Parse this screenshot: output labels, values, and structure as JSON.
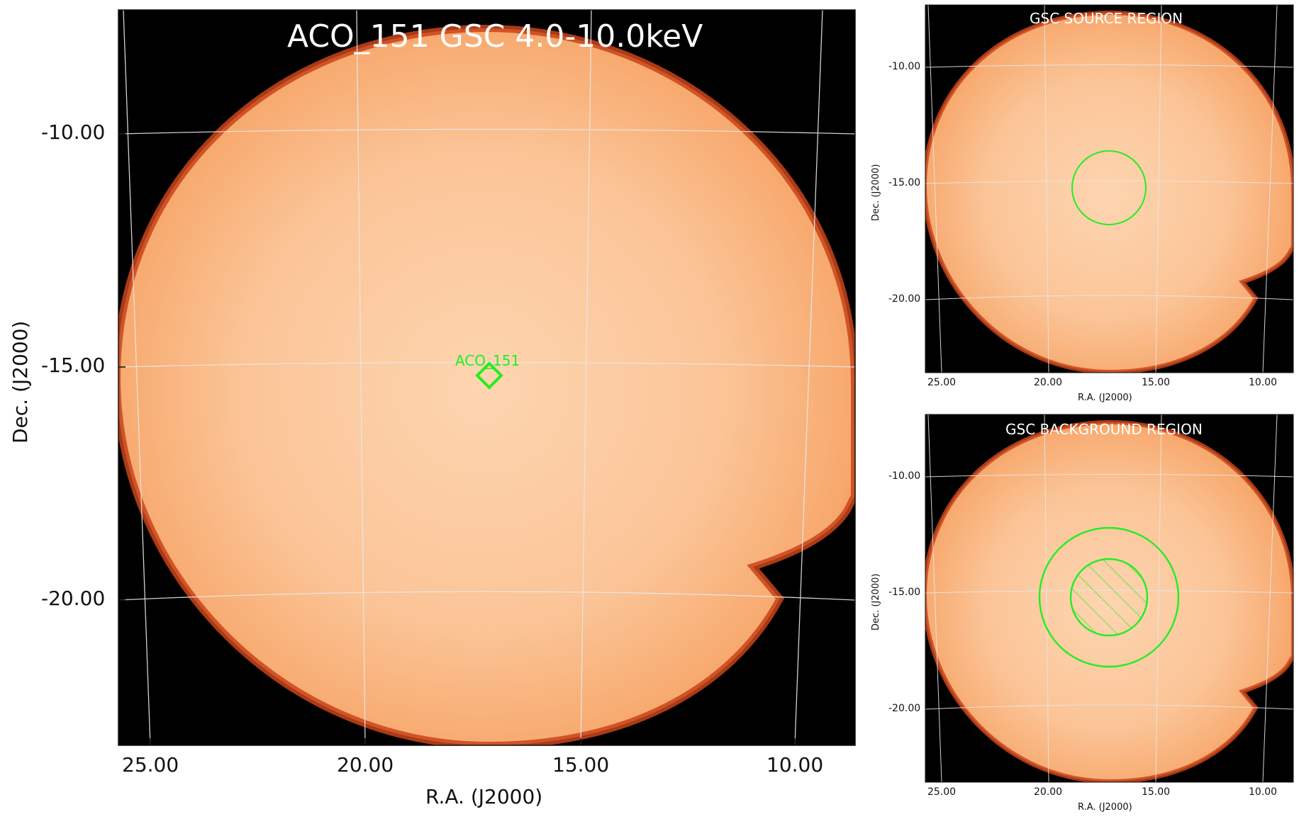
{
  "main": {
    "title": "ACO_151 GSC 4.0-10.0keV",
    "xlabel": "R.A. (J2000)",
    "ylabel": "Dec. (J2000)",
    "xticks": [
      "25.00",
      "20.00",
      "15.00",
      "10.00"
    ],
    "yticks": [
      "-10.00",
      "-15.00",
      "-20.00"
    ],
    "source_label": "ACO_151"
  },
  "source_panel": {
    "title": "GSC SOURCE REGION",
    "xlabel": "R.A. (J2000)",
    "ylabel": "Dec. (J2000)",
    "xticks": [
      "25.00",
      "20.00",
      "15.00",
      "10.00"
    ],
    "yticks": [
      "-10.00",
      "-15.00",
      "-20.00"
    ]
  },
  "background_panel": {
    "title": "GSC BACKGROUND REGION",
    "xlabel": "R.A. (J2000)",
    "ylabel": "Dec. (J2000)",
    "xticks": [
      "25.00",
      "20.00",
      "15.00",
      "10.00"
    ],
    "yticks": [
      "-10.00",
      "-15.00",
      "-20.00"
    ]
  },
  "colors": {
    "background": "#000000",
    "field_center": "#fdd3ad",
    "field_edge": "#f29a5c",
    "rim": "#b3320a",
    "region": "#22ee22",
    "grid": "#d8d8d8"
  }
}
